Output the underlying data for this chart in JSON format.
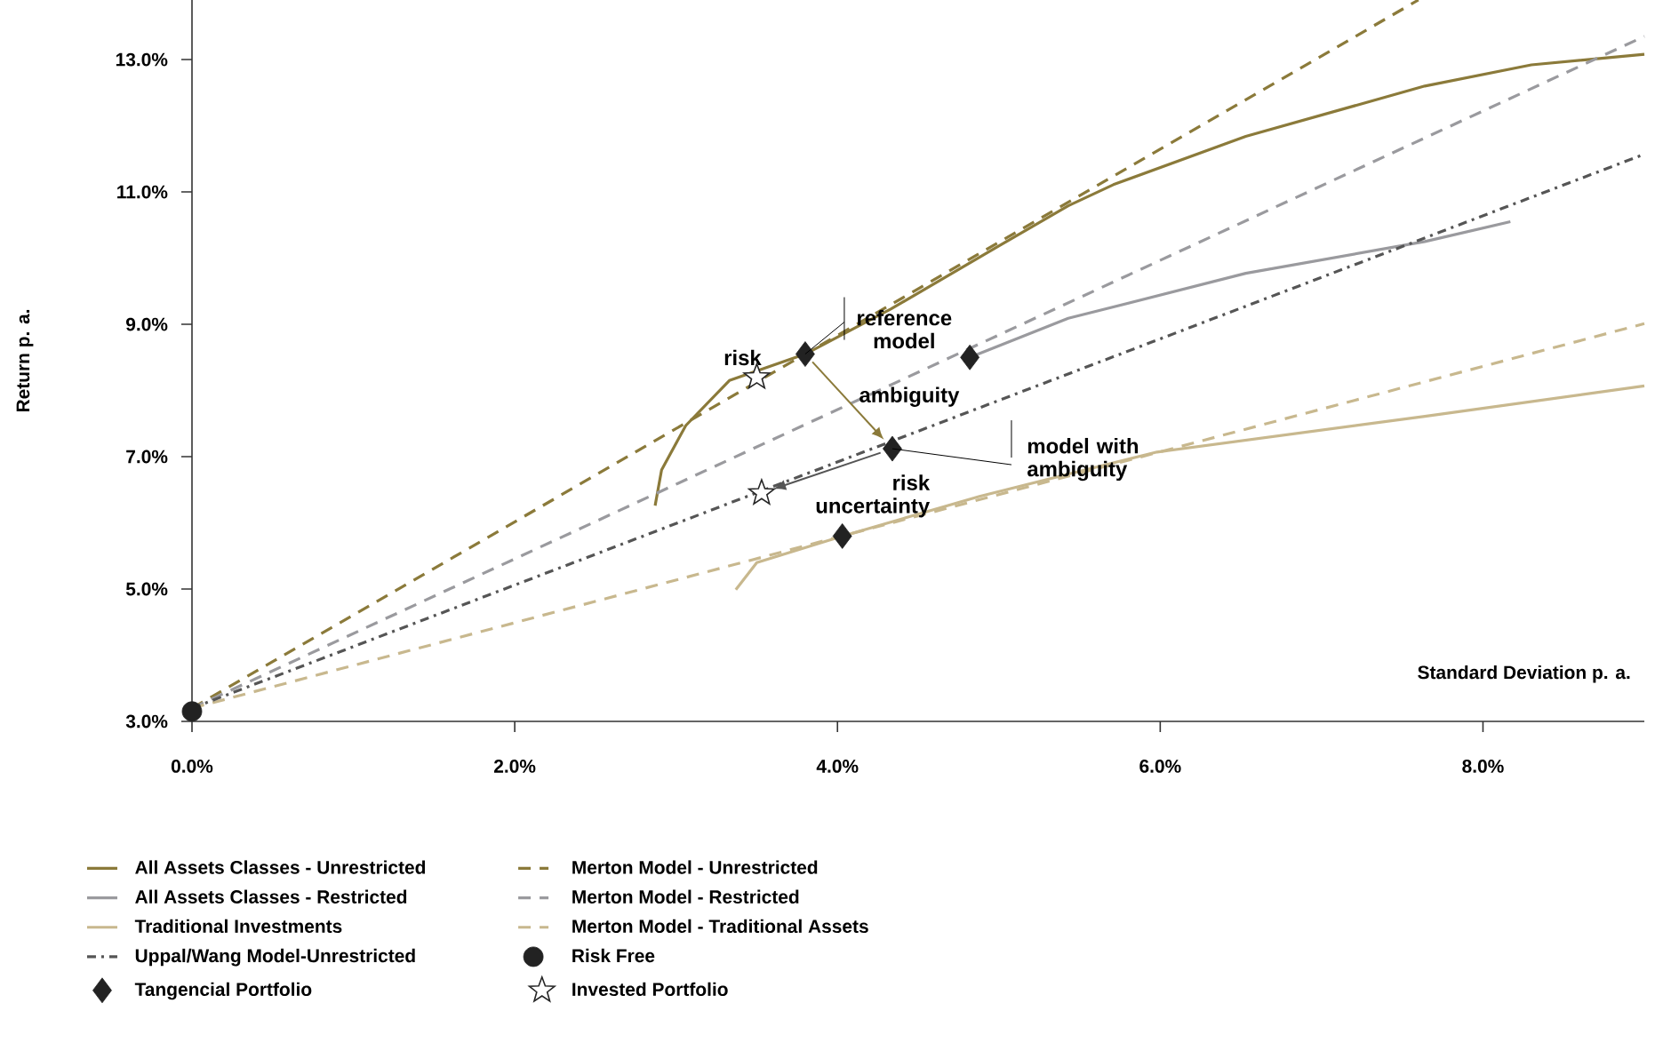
{
  "chart_data": {
    "type": "line",
    "xlabel": "Standard Deviation p. a.",
    "ylabel": "Return p. a.",
    "xlim": [
      0,
      9
    ],
    "ylim": [
      3,
      13.9
    ],
    "xticks": [
      {
        "value": 0,
        "label": "0.0%"
      },
      {
        "value": 2,
        "label": "2.0%"
      },
      {
        "value": 4,
        "label": "4.0%"
      },
      {
        "value": 6,
        "label": "6.0%"
      },
      {
        "value": 8,
        "label": "8.0%"
      }
    ],
    "yticks": [
      {
        "value": 3,
        "label": "3.0%"
      },
      {
        "value": 5,
        "label": "5.0%"
      },
      {
        "value": 7,
        "label": "7.0%"
      },
      {
        "value": 9,
        "label": "9.0%"
      },
      {
        "value": 11,
        "label": "11.0%"
      },
      {
        "value": 13,
        "label": "13.0%"
      }
    ],
    "grid": false,
    "legend": "bottom",
    "series": [
      {
        "name": "All Assets Classes - Unrestricted",
        "type": "line",
        "line_style": "solid",
        "color": "#8b7a3a",
        "x": [
          2.87,
          2.91,
          3.06,
          3.33,
          3.8,
          4.33,
          4.99,
          5.43,
          5.71,
          6.53,
          7.64,
          8.3,
          9.0
        ],
        "values": [
          6.26,
          6.8,
          7.47,
          8.15,
          8.55,
          9.23,
          10.17,
          10.79,
          11.11,
          11.84,
          12.6,
          12.92,
          13.08
        ]
      },
      {
        "name": "Merton Model - Unrestricted",
        "type": "line",
        "line_style": "dashed",
        "color": "#8b7a3a",
        "x": [
          0,
          7.6
        ],
        "values": [
          3.2,
          13.9
        ]
      },
      {
        "name": "All Assets Classes - Restricted",
        "type": "line",
        "line_style": "solid",
        "color": "#9a9a9e",
        "x": [
          4.82,
          5.43,
          6.53,
          7.64,
          8.17
        ],
        "values": [
          8.5,
          9.09,
          9.77,
          10.25,
          10.55
        ]
      },
      {
        "name": "Merton Model - Restricted",
        "type": "line",
        "line_style": "dashed",
        "color": "#9a9a9e",
        "x": [
          0,
          9.0
        ],
        "values": [
          3.2,
          13.35
        ]
      },
      {
        "name": "Traditional Investments",
        "type": "line",
        "line_style": "solid",
        "color": "#c8b88e",
        "x": [
          3.37,
          3.5,
          4.03,
          4.88,
          5.98,
          7.64,
          9.0
        ],
        "values": [
          4.99,
          5.4,
          5.8,
          6.4,
          7.07,
          7.61,
          8.07
        ]
      },
      {
        "name": "Merton Model - Traditional Assets",
        "type": "line",
        "line_style": "dashed",
        "color": "#c8b88e",
        "x": [
          0,
          9.0
        ],
        "values": [
          3.2,
          9.01
        ]
      },
      {
        "name": "Uppal/Wang Model-Unrestricted",
        "type": "line",
        "line_style": "dashdot",
        "color": "#555555",
        "x": [
          0,
          9.0
        ],
        "values": [
          3.2,
          11.57
        ]
      },
      {
        "name": "Risk Free",
        "type": "scatter",
        "marker": "circle",
        "color": "#222222",
        "x": [
          0
        ],
        "values": [
          3.15
        ]
      },
      {
        "name": "Tangencial Portfolio",
        "type": "scatter",
        "marker": "diamond",
        "color": "#222222",
        "x": [
          3.8,
          4.82,
          4.34,
          4.03
        ],
        "values": [
          8.55,
          8.5,
          7.12,
          5.8
        ]
      },
      {
        "name": "Invested Portfolio",
        "type": "scatter",
        "marker": "star",
        "color": "#222222",
        "x": [
          3.5,
          3.53
        ],
        "values": [
          8.2,
          6.45
        ]
      }
    ],
    "annotations": [
      {
        "text": "risk",
        "x": 3.5,
        "y": 8.2
      },
      {
        "text": "reference model",
        "x": 3.8,
        "y": 8.55
      },
      {
        "text": "ambiguity",
        "x": 4.07,
        "y": 7.85
      },
      {
        "text": "model with ambiguity",
        "x": 4.34,
        "y": 7.12
      },
      {
        "text": "risk uncertainty",
        "x": 3.95,
        "y": 6.8
      }
    ]
  }
}
